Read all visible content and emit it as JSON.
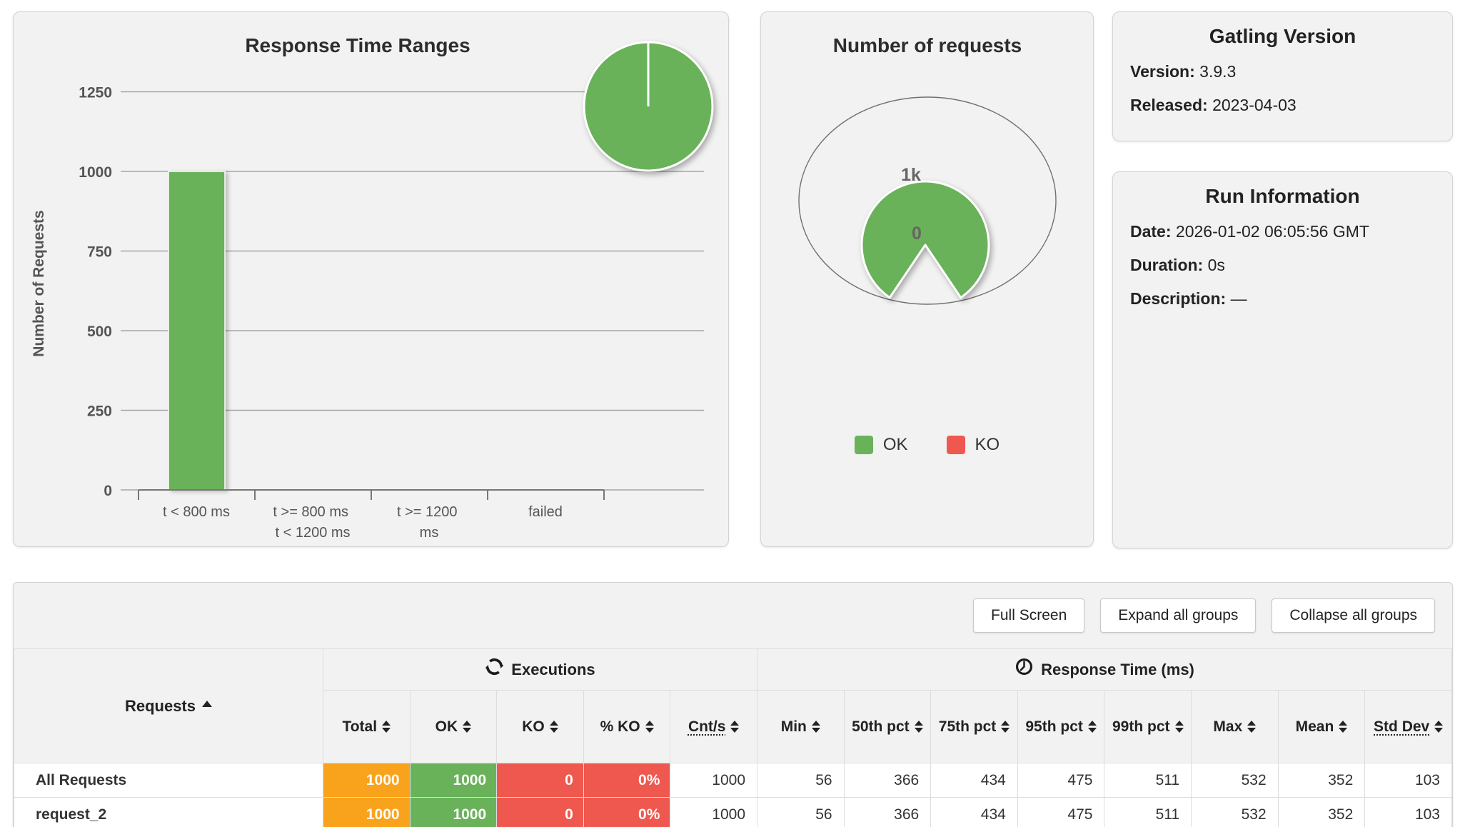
{
  "colors": {
    "green": "#69b25a",
    "red": "#ee584e",
    "orange": "#f9a31d",
    "panel_bg": "#f2f2f2",
    "grid": "#a6a6a6"
  },
  "left_chart": {
    "title": "Response Time Ranges",
    "ylabel": "Number of Requests",
    "ytick_labels": [
      "0",
      "250",
      "500",
      "750",
      "1000",
      "1250"
    ],
    "category_lines": [
      {
        "l1": "t < 800 ms",
        "l2": ""
      },
      {
        "l1": "t >= 800 ms",
        "l2": "t < 1200 ms"
      },
      {
        "l1": "t >= 1200",
        "l2": "ms"
      },
      {
        "l1": "failed",
        "l2": ""
      }
    ],
    "chart_data": {
      "type": "bar",
      "categories": [
        "t < 800 ms",
        "t >= 800 ms t < 1200 ms",
        "t >= 1200 ms",
        "failed"
      ],
      "values": [
        1000,
        0,
        0,
        0
      ],
      "title": "Response Time Ranges",
      "xlabel": "",
      "ylabel": "Number of Requests",
      "ylim": [
        0,
        1250
      ],
      "yticks": [
        0,
        250,
        500,
        750,
        1000,
        1250
      ],
      "grid": true,
      "bar_color": "#69b25a",
      "inset_pie": {
        "slices": [
          {
            "label": "t < 800 ms",
            "value": 1000,
            "color": "#69b25a"
          }
        ]
      }
    }
  },
  "requests_chart": {
    "title": "Number of requests",
    "ok_display": "1k",
    "ko_display": "0",
    "legend": [
      {
        "label": "OK",
        "color": "#69b25a"
      },
      {
        "label": "KO",
        "color": "#ee584e"
      }
    ],
    "chart_data": {
      "type": "pie",
      "title": "Number of requests",
      "slices": [
        {
          "label": "OK",
          "value": 1000,
          "display": "1k",
          "color": "#69b25a"
        },
        {
          "label": "KO",
          "value": 0,
          "display": "0",
          "color": "#ee584e"
        }
      ],
      "legend_position": "bottom"
    }
  },
  "gatling_version": {
    "title": "Gatling Version",
    "version_label": "Version:",
    "version_value": "3.9.3",
    "released_label": "Released:",
    "released_value": "2023-04-03"
  },
  "run_information": {
    "title": "Run Information",
    "date_label": "Date:",
    "date_value": "2026-01-02 06:05:56 GMT",
    "duration_label": "Duration:",
    "duration_value": "0s",
    "description_label": "Description:",
    "description_value": "—"
  },
  "toolbar": {
    "full_screen": "Full Screen",
    "expand_all": "Expand all groups",
    "collapse_all": "Collapse all groups"
  },
  "stats_table": {
    "requests_header": "Requests",
    "executions_header": "Executions",
    "response_time_header": "Response Time (ms)",
    "columns": [
      "Total",
      "OK",
      "KO",
      "% KO",
      "Cnt/s",
      "Min",
      "50th pct",
      "75th pct",
      "95th pct",
      "99th pct",
      "Max",
      "Mean",
      "Std Dev"
    ],
    "rows": [
      {
        "name": "All Requests",
        "values": [
          "1000",
          "1000",
          "0",
          "0%",
          "1000",
          "56",
          "366",
          "434",
          "475",
          "511",
          "532",
          "352",
          "103"
        ]
      },
      {
        "name": "request_2",
        "values": [
          "1000",
          "1000",
          "0",
          "0%",
          "1000",
          "56",
          "366",
          "434",
          "475",
          "511",
          "532",
          "352",
          "103"
        ]
      }
    ]
  }
}
